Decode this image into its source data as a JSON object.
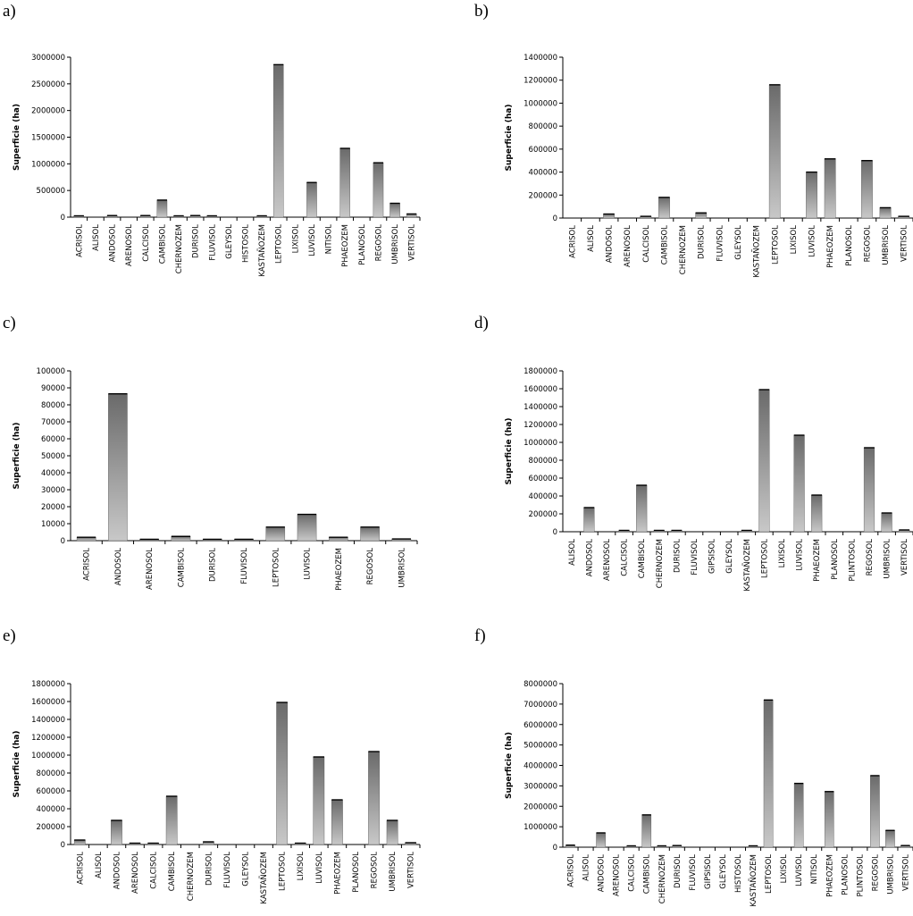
{
  "chart_data": [
    {
      "panel": "a)",
      "type": "bar",
      "ylabel": "Superficie (ha)",
      "ylim": [
        0,
        3000000
      ],
      "yticks": [
        0,
        500000,
        1000000,
        1500000,
        2000000,
        2500000,
        3000000
      ],
      "categories": [
        "ACRISOL",
        "ALISOL",
        "ANDOSOL",
        "ARENOSOL",
        "CALCISOL",
        "CAMBISOL",
        "CHERNOZEM",
        "DURISOL",
        "FLUVISOL",
        "GLEYSOL",
        "HISTOSOL",
        "KASTAÑOZEM",
        "LEPTOSOL",
        "LIXISOL",
        "LUVISOL",
        "NITISOL",
        "PHAEOZEM",
        "PLANOSOL",
        "REGOSOL",
        "UMBRISOL",
        "VERTISOL"
      ],
      "values": [
        10000,
        0,
        30000,
        0,
        30000,
        320000,
        10000,
        30000,
        15000,
        0,
        0,
        15000,
        2860000,
        0,
        650000,
        0,
        1290000,
        0,
        1020000,
        260000,
        60000
      ]
    },
    {
      "panel": "b)",
      "type": "bar",
      "ylabel": "Superficie (ha)",
      "ylim": [
        0,
        1400000
      ],
      "yticks": [
        0,
        200000,
        400000,
        600000,
        800000,
        1000000,
        1200000,
        1400000
      ],
      "categories": [
        "ACRISOL",
        "ALISOL",
        "ANDOSOL",
        "ARENOSOL",
        "CALCISOL",
        "CAMBISOL",
        "CHERNOZEM",
        "DURISOL",
        "FLUVISOL",
        "GLEYSOL",
        "KASTAÑOZEM",
        "LEPTOSOL",
        "LIXISOL",
        "LUVISOL",
        "PHAEOZEM",
        "PLANOSOL",
        "REGOSOL",
        "UMBRISOL",
        "VERTISOL"
      ],
      "values": [
        0,
        0,
        35000,
        0,
        15000,
        180000,
        0,
        45000,
        0,
        0,
        0,
        1160000,
        0,
        400000,
        515000,
        0,
        500000,
        90000,
        15000
      ]
    },
    {
      "panel": "c)",
      "type": "bar",
      "ylabel": "Superficie (ha)",
      "ylim": [
        0,
        100000
      ],
      "yticks": [
        0,
        10000,
        20000,
        30000,
        40000,
        50000,
        60000,
        70000,
        80000,
        90000,
        100000
      ],
      "categories": [
        "ACRISOL",
        "ANDOSOL",
        "ARENOSOL",
        "CAMBISOL",
        "DURISOL",
        "FLUVISOL",
        "LEPTOSOL",
        "LUVISOL",
        "PHAEOZEM",
        "REGOSOL",
        "UMBRISOL"
      ],
      "values": [
        2000,
        86500,
        500,
        2500,
        500,
        500,
        8000,
        15500,
        2000,
        8000,
        1000
      ]
    },
    {
      "panel": "d)",
      "type": "bar",
      "ylabel": "Superficie (ha)",
      "ylim": [
        0,
        1800000
      ],
      "yticks": [
        0,
        200000,
        400000,
        600000,
        800000,
        1000000,
        1200000,
        1400000,
        1600000,
        1800000
      ],
      "categories": [
        "ALISOL",
        "ANDOSOL",
        "ARENOSOL",
        "CALCISOL",
        "CAMBISOL",
        "CHERNOZEM",
        "DURISOL",
        "FLUVISOL",
        "GIPSISOL",
        "GLEYSOL",
        "KASTAÑOZEM",
        "LEPTOSOL",
        "LIXISOL",
        "LUVISOL",
        "PHAEOZEM",
        "PLANOSOL",
        "PLINTOSOL",
        "REGOSOL",
        "UMBRISOL",
        "VERTISOL"
      ],
      "values": [
        0,
        270000,
        0,
        10000,
        520000,
        10000,
        10000,
        0,
        0,
        0,
        10000,
        1590000,
        0,
        1080000,
        410000,
        0,
        0,
        940000,
        210000,
        20000
      ]
    },
    {
      "panel": "e)",
      "type": "bar",
      "ylabel": "Superficie (ha)",
      "ylim": [
        0,
        1800000
      ],
      "yticks": [
        0,
        200000,
        400000,
        600000,
        800000,
        1000000,
        1200000,
        1400000,
        1600000,
        1800000
      ],
      "categories": [
        "ACRISOL",
        "ALISOL",
        "ANDOSOL",
        "ARENOSOL",
        "CALCISOL",
        "CAMBISOL",
        "CHERNOZEM",
        "DURISOL",
        "FLUVISOL",
        "GLEYSOL",
        "KASTAÑOZEM",
        "LEPTOSOL",
        "LIXISOL",
        "LUVISOL",
        "PHAEOZEM",
        "PLANOSOL",
        "REGOSOL",
        "UMBRISOL",
        "VERTISOL"
      ],
      "values": [
        50000,
        0,
        270000,
        10000,
        10000,
        540000,
        0,
        30000,
        0,
        0,
        0,
        1590000,
        10000,
        980000,
        500000,
        0,
        1040000,
        270000,
        20000
      ]
    },
    {
      "panel": "f)",
      "type": "bar",
      "ylabel": "Superficie (ha)",
      "ylim": [
        0,
        8000000
      ],
      "yticks": [
        0,
        1000000,
        2000000,
        3000000,
        4000000,
        5000000,
        6000000,
        7000000,
        8000000
      ],
      "categories": [
        "ACRISOL",
        "ALISOL",
        "ANDOSOL",
        "ARENOSOL",
        "CALCISOL",
        "CAMBISOL",
        "CHERNOZEM",
        "DURISOL",
        "FLUVISOL",
        "GIPSISOL",
        "GLEYSOL",
        "HISTOSOL",
        "KASTAÑOZEM",
        "LEPTOSOL",
        "LIXISOL",
        "LUVISOL",
        "NITISOL",
        "PHAEOZEM",
        "PLANOSOL",
        "PLINTOSOL",
        "REGOSOL",
        "UMBRISOL",
        "VERTISOL"
      ],
      "values": [
        100000,
        0,
        700000,
        0,
        50000,
        1580000,
        50000,
        80000,
        0,
        0,
        0,
        0,
        50000,
        7200000,
        0,
        3120000,
        0,
        2720000,
        0,
        0,
        3500000,
        820000,
        80000
      ]
    }
  ],
  "colors": {
    "bar_top": "#6a6a6a",
    "bar_bottom": "#c8c8c8",
    "axis": "#000000"
  }
}
